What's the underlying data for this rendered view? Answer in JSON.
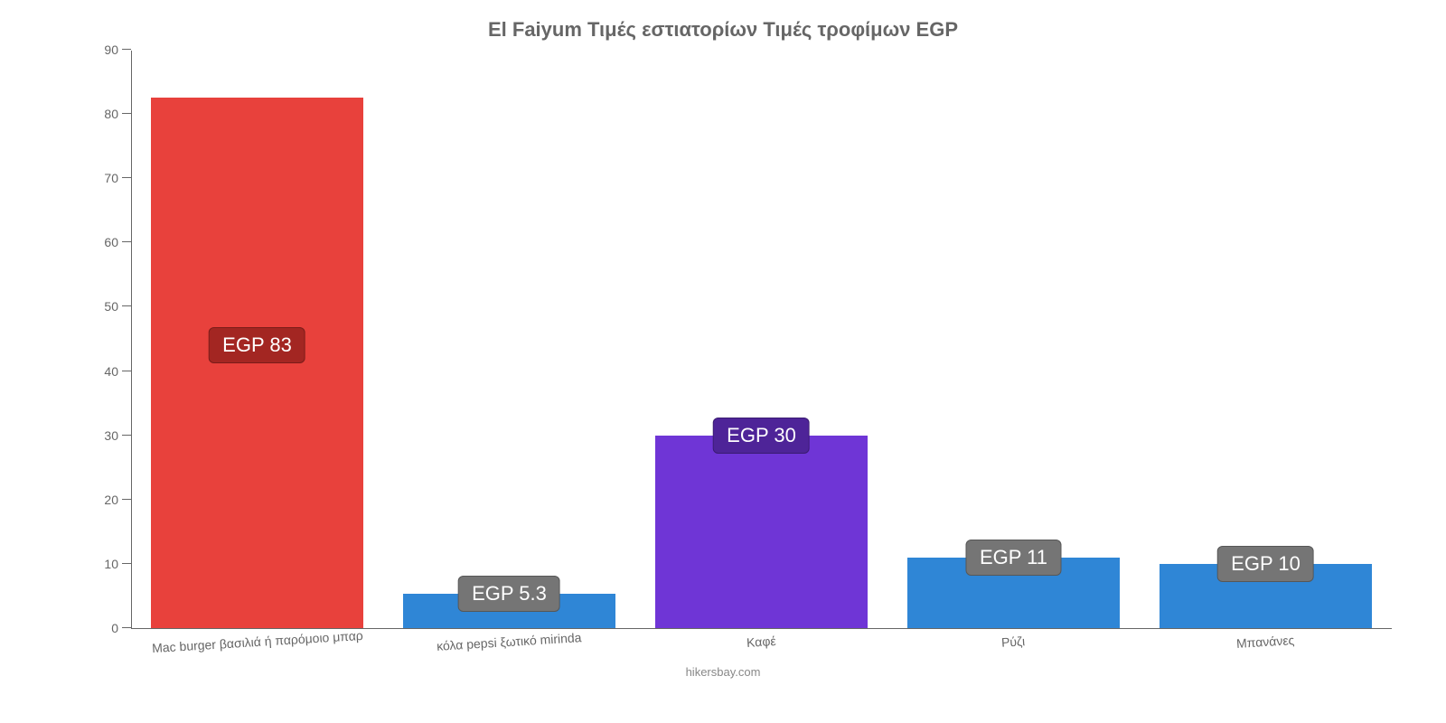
{
  "chart": {
    "type": "bar",
    "title": "El Faiyum Τιμές εστιατορίων Τιμές τροφίμων EGP",
    "title_fontsize": 22,
    "title_color": "#666666",
    "background_color": "#ffffff",
    "axis_color": "#666666",
    "label_color": "#666666",
    "label_fontsize": 14,
    "ylim": [
      0,
      90
    ],
    "ytick_step": 10,
    "yticks": [
      0,
      10,
      20,
      30,
      40,
      50,
      60,
      70,
      80,
      90
    ],
    "bar_width": 0.84,
    "categories": [
      "Mac burger βασιλιά ή παρόμοιο μπαρ",
      "κόλα pepsi ξωτικό mirinda",
      "Καφέ",
      "Ρύζι",
      "Μπανάνες"
    ],
    "values": [
      82.5,
      5.3,
      30,
      11,
      10
    ],
    "value_labels": [
      "EGP 83",
      "EGP 5.3",
      "EGP 30",
      "EGP 11",
      "EGP 10"
    ],
    "bar_colors": [
      "#e8413c",
      "#2f86d6",
      "#6f35d6",
      "#2f86d6",
      "#2f86d6"
    ],
    "badge_colors": [
      "#a32622",
      "#757575",
      "#4e2498",
      "#757575",
      "#757575"
    ],
    "badge_fontsize": 22,
    "badge_text_color": "#ffffff",
    "attribution": "hikersbay.com",
    "attribution_color": "#888888",
    "attribution_fontsize": 13
  }
}
